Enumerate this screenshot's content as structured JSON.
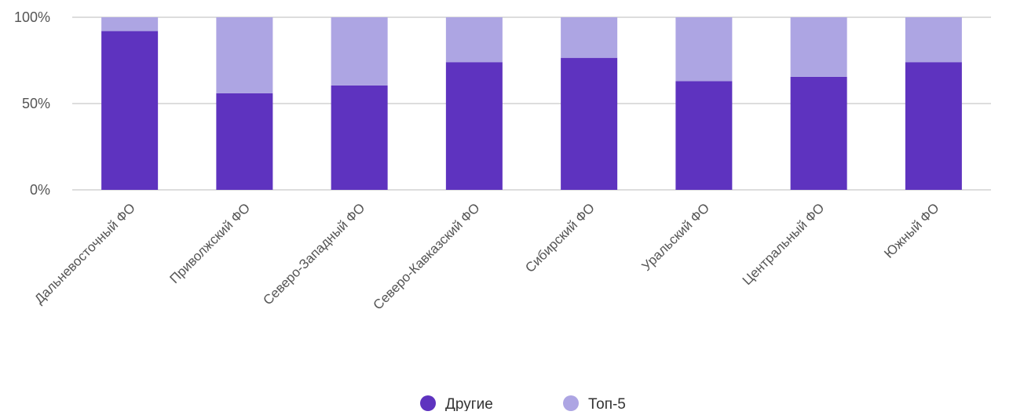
{
  "chart_data": {
    "type": "bar",
    "stacked": true,
    "categories": [
      "Дальневосточный ФО",
      "Приволжский ФО",
      "Северо-Западный ФО",
      "Северо-Кавказский ФО",
      "Сибирский ФО",
      "Уральский ФО",
      "Центральный ФО",
      "Южный ФО"
    ],
    "series": [
      {
        "name": "Другие",
        "color": "#5e33bf",
        "values": [
          92,
          56,
          60.5,
          74,
          76.5,
          63,
          65.5,
          74
        ]
      },
      {
        "name": "Топ-5",
        "color": "#ada5e3",
        "values": [
          8,
          44,
          39.5,
          26,
          23.5,
          37,
          34.5,
          26
        ]
      }
    ],
    "ylim": [
      0,
      100
    ],
    "yticks": [
      {
        "value": 0,
        "label": "0%"
      },
      {
        "value": 50,
        "label": "50%"
      },
      {
        "value": 100,
        "label": "100%"
      }
    ],
    "grid": true,
    "legend_position": "bottom-center",
    "gridline_color": "#dddddd",
    "title": "",
    "xlabel": "",
    "ylabel": ""
  }
}
